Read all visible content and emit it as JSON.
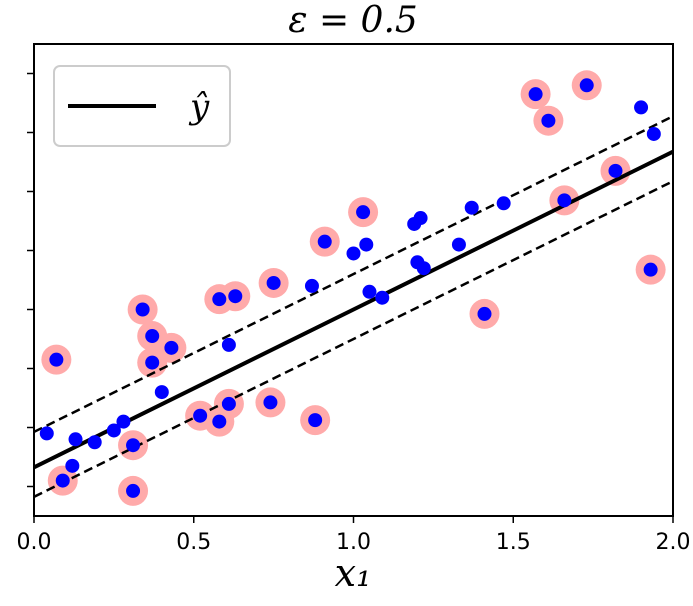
{
  "chart_data": {
    "type": "scatter",
    "title": "ε = 0.5",
    "xlabel": "x₁",
    "ylabel": "",
    "xlim": [
      0.0,
      2.0
    ],
    "ylim": [
      0,
      16
    ],
    "x_ticks": [
      0.0,
      0.5,
      1.0,
      1.5,
      2.0
    ],
    "x_tick_labels": [
      "0.0",
      "0.5",
      "1.0",
      "1.5",
      "2.0"
    ],
    "y_ticks": [
      1,
      3,
      5,
      7,
      9,
      11,
      13,
      15
    ],
    "legend": {
      "placement": "top-left",
      "entries": [
        "ŷ"
      ]
    },
    "colors": {
      "points": "#0000ff",
      "support_vectors": "#ffaaaa",
      "line": "#000000"
    },
    "regression_line": {
      "x": [
        0.0,
        2.0
      ],
      "y": [
        1.65,
        12.35
      ]
    },
    "margin_upper": {
      "x": [
        0.0,
        2.0
      ],
      "y": [
        2.85,
        13.55
      ]
    },
    "margin_lower": {
      "x": [
        0.0,
        2.0
      ],
      "y": [
        0.65,
        11.35
      ]
    },
    "points": [
      {
        "x": 0.04,
        "y": 2.8,
        "sv": false
      },
      {
        "x": 0.07,
        "y": 5.3,
        "sv": true
      },
      {
        "x": 0.09,
        "y": 1.2,
        "sv": true
      },
      {
        "x": 0.12,
        "y": 1.7,
        "sv": false
      },
      {
        "x": 0.13,
        "y": 2.6,
        "sv": false
      },
      {
        "x": 0.19,
        "y": 2.5,
        "sv": false
      },
      {
        "x": 0.25,
        "y": 2.9,
        "sv": false
      },
      {
        "x": 0.28,
        "y": 3.2,
        "sv": false
      },
      {
        "x": 0.31,
        "y": 2.4,
        "sv": true
      },
      {
        "x": 0.31,
        "y": 0.85,
        "sv": true
      },
      {
        "x": 0.34,
        "y": 7.0,
        "sv": true
      },
      {
        "x": 0.37,
        "y": 6.1,
        "sv": true
      },
      {
        "x": 0.37,
        "y": 5.2,
        "sv": true
      },
      {
        "x": 0.4,
        "y": 4.2,
        "sv": false
      },
      {
        "x": 0.43,
        "y": 5.7,
        "sv": true
      },
      {
        "x": 0.52,
        "y": 3.4,
        "sv": true
      },
      {
        "x": 0.58,
        "y": 7.35,
        "sv": true
      },
      {
        "x": 0.58,
        "y": 3.2,
        "sv": true
      },
      {
        "x": 0.61,
        "y": 5.8,
        "sv": false
      },
      {
        "x": 0.61,
        "y": 3.8,
        "sv": true
      },
      {
        "x": 0.63,
        "y": 7.45,
        "sv": true
      },
      {
        "x": 0.74,
        "y": 3.85,
        "sv": true
      },
      {
        "x": 0.75,
        "y": 7.9,
        "sv": true
      },
      {
        "x": 0.87,
        "y": 7.8,
        "sv": false
      },
      {
        "x": 0.88,
        "y": 3.25,
        "sv": true
      },
      {
        "x": 0.91,
        "y": 9.3,
        "sv": true
      },
      {
        "x": 1.0,
        "y": 8.9,
        "sv": false
      },
      {
        "x": 1.03,
        "y": 10.3,
        "sv": true
      },
      {
        "x": 1.04,
        "y": 9.2,
        "sv": false
      },
      {
        "x": 1.05,
        "y": 7.6,
        "sv": false
      },
      {
        "x": 1.09,
        "y": 7.4,
        "sv": false
      },
      {
        "x": 1.19,
        "y": 9.9,
        "sv": false
      },
      {
        "x": 1.2,
        "y": 8.6,
        "sv": false
      },
      {
        "x": 1.21,
        "y": 10.1,
        "sv": false
      },
      {
        "x": 1.22,
        "y": 8.4,
        "sv": false
      },
      {
        "x": 1.33,
        "y": 9.2,
        "sv": false
      },
      {
        "x": 1.37,
        "y": 10.45,
        "sv": false
      },
      {
        "x": 1.41,
        "y": 6.85,
        "sv": true
      },
      {
        "x": 1.47,
        "y": 10.6,
        "sv": false
      },
      {
        "x": 1.57,
        "y": 14.3,
        "sv": true
      },
      {
        "x": 1.61,
        "y": 13.4,
        "sv": true
      },
      {
        "x": 1.66,
        "y": 10.7,
        "sv": true
      },
      {
        "x": 1.73,
        "y": 14.6,
        "sv": true
      },
      {
        "x": 1.82,
        "y": 11.7,
        "sv": true
      },
      {
        "x": 1.9,
        "y": 13.85,
        "sv": false
      },
      {
        "x": 1.93,
        "y": 8.35,
        "sv": true
      },
      {
        "x": 1.94,
        "y": 12.95,
        "sv": false
      }
    ]
  }
}
